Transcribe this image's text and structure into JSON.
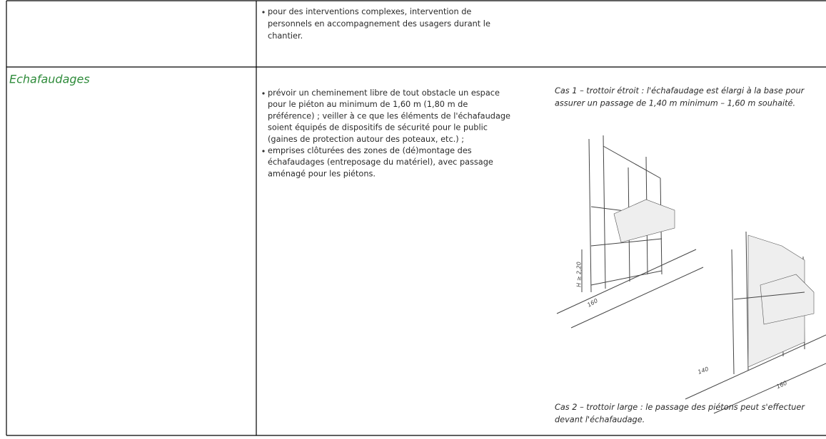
{
  "table": {
    "rows": [
      {
        "bullets": [
          [
            "pour des interventions complexes, intervention de",
            "personnels en accompagnement des usagers durant  le",
            "chantier."
          ]
        ]
      },
      {
        "heading": "Echafaudages",
        "bullets": [
          [
            "prévoir un cheminement libre de tout obstacle un espace",
            "pour le piéton au minimum de 1,60 m (1,80 m de",
            "préférence) ; veiller à ce que les éléments de l'échafaudage",
            "soient équipés de dispositifs de sécurité pour le public",
            "(gaines de protection autour des poteaux, etc.) ;"
          ],
          [
            "emprises clôturées des zones de (dé)montage des",
            "échafaudages (entreposage du matériel), avec passage",
            "aménagé pour les piétons."
          ]
        ],
        "figure": {
          "captions": [
            [
              "Cas 1 – trottoir étroit : l'échafaudage est élargi à la base pour",
              "assurer un passage de 1,40 m minimum – 1,60 m souhaité."
            ],
            [
              "Cas 2 – trottoir large : le passage des piétons peut s'effectuer",
              "devant l'échafaudage."
            ]
          ],
          "labels": [
            "H ≥ 2,20",
            "160",
            "140",
            "160"
          ]
        }
      }
    ]
  }
}
